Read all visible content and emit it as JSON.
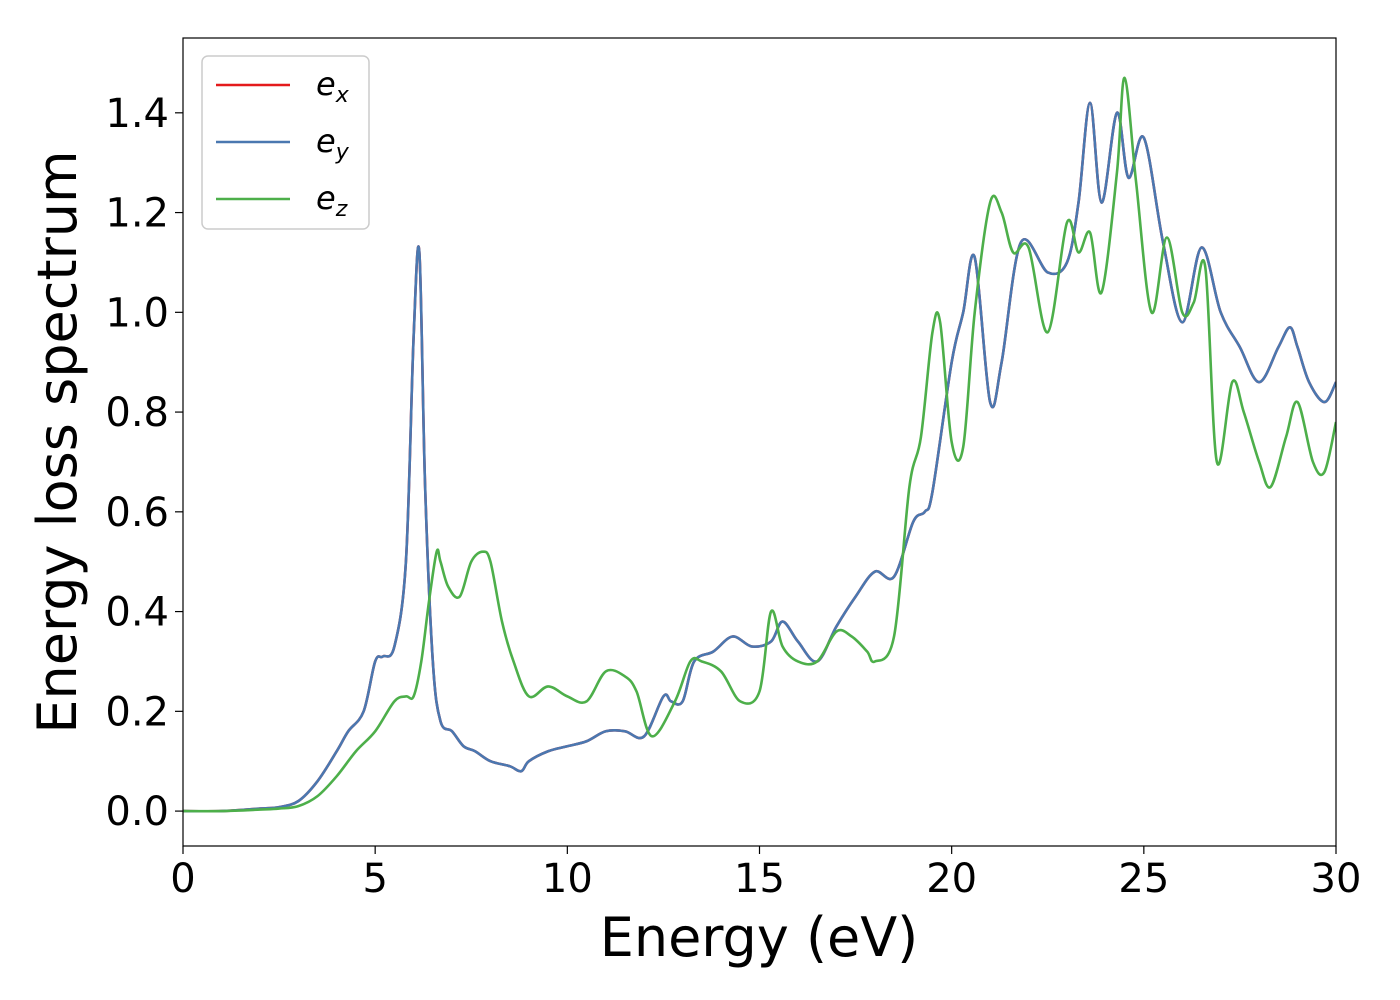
{
  "chart_data": {
    "type": "line",
    "xlabel": "Energy (eV)",
    "ylabel": "Energy loss spectrum",
    "xlim": [
      0,
      30
    ],
    "ylim": [
      -0.07,
      1.55
    ],
    "xticks": [
      0,
      5,
      10,
      15,
      20,
      25,
      30
    ],
    "xtick_labels": [
      "0",
      "5",
      "10",
      "15",
      "20",
      "25",
      "30"
    ],
    "yticks": [
      0.0,
      0.2,
      0.4,
      0.6,
      0.8,
      1.0,
      1.2,
      1.4
    ],
    "ytick_labels": [
      "0.0",
      "0.2",
      "0.4",
      "0.6",
      "0.8",
      "1.0",
      "1.2",
      "1.4"
    ],
    "grid": false,
    "legend_position": "top-left",
    "series": [
      {
        "name": "e_x",
        "label_base": "e",
        "label_sub": "x",
        "color": "#e41a1c",
        "x": [
          0,
          1,
          2,
          2.5,
          3,
          3.5,
          4,
          4.3,
          4.7,
          5,
          5.2,
          5.5,
          5.8,
          6,
          6.15,
          6.3,
          6.5,
          6.7,
          7,
          7.3,
          7.6,
          8,
          8.5,
          8.8,
          9,
          9.5,
          10,
          10.5,
          11,
          11.5,
          12,
          12.5,
          12.7,
          13,
          13.3,
          13.8,
          14.3,
          14.8,
          15.3,
          15.6,
          16,
          16.5,
          17,
          17.5,
          18,
          18.5,
          19,
          19.3,
          19.5,
          20,
          20.3,
          20.6,
          21,
          21.3,
          21.8,
          22.5,
          23,
          23.3,
          23.6,
          23.9,
          24.3,
          24.6,
          25,
          25.5,
          26,
          26.5,
          27,
          27.5,
          28,
          28.5,
          28.8,
          29,
          29.3,
          29.7,
          30
        ],
        "values": [
          0.0,
          0.0,
          0.005,
          0.008,
          0.02,
          0.06,
          0.12,
          0.16,
          0.2,
          0.3,
          0.31,
          0.33,
          0.5,
          0.95,
          1.12,
          0.65,
          0.3,
          0.18,
          0.16,
          0.13,
          0.12,
          0.1,
          0.09,
          0.08,
          0.1,
          0.12,
          0.13,
          0.14,
          0.16,
          0.16,
          0.15,
          0.23,
          0.22,
          0.22,
          0.3,
          0.32,
          0.35,
          0.33,
          0.34,
          0.38,
          0.34,
          0.3,
          0.37,
          0.43,
          0.48,
          0.47,
          0.58,
          0.6,
          0.64,
          0.9,
          1.0,
          1.11,
          0.82,
          0.9,
          1.14,
          1.08,
          1.1,
          1.22,
          1.42,
          1.22,
          1.4,
          1.27,
          1.35,
          1.14,
          0.98,
          1.13,
          1.0,
          0.93,
          0.86,
          0.93,
          0.97,
          0.93,
          0.86,
          0.82,
          0.86
        ]
      },
      {
        "name": "e_y",
        "label_base": "e",
        "label_sub": "y",
        "color": "#4a78b0",
        "x": [
          0,
          1,
          2,
          2.5,
          3,
          3.5,
          4,
          4.3,
          4.7,
          5,
          5.2,
          5.5,
          5.8,
          6,
          6.15,
          6.3,
          6.5,
          6.7,
          7,
          7.3,
          7.6,
          8,
          8.5,
          8.8,
          9,
          9.5,
          10,
          10.5,
          11,
          11.5,
          12,
          12.5,
          12.7,
          13,
          13.3,
          13.8,
          14.3,
          14.8,
          15.3,
          15.6,
          16,
          16.5,
          17,
          17.5,
          18,
          18.5,
          19,
          19.3,
          19.5,
          20,
          20.3,
          20.6,
          21,
          21.3,
          21.8,
          22.5,
          23,
          23.3,
          23.6,
          23.9,
          24.3,
          24.6,
          25,
          25.5,
          26,
          26.5,
          27,
          27.5,
          28,
          28.5,
          28.8,
          29,
          29.3,
          29.7,
          30
        ],
        "values": [
          0.0,
          0.0,
          0.005,
          0.008,
          0.02,
          0.06,
          0.12,
          0.16,
          0.2,
          0.3,
          0.31,
          0.33,
          0.5,
          0.95,
          1.12,
          0.65,
          0.3,
          0.18,
          0.16,
          0.13,
          0.12,
          0.1,
          0.09,
          0.08,
          0.1,
          0.12,
          0.13,
          0.14,
          0.16,
          0.16,
          0.15,
          0.23,
          0.22,
          0.22,
          0.3,
          0.32,
          0.35,
          0.33,
          0.34,
          0.38,
          0.34,
          0.3,
          0.37,
          0.43,
          0.48,
          0.47,
          0.58,
          0.6,
          0.64,
          0.9,
          1.0,
          1.11,
          0.82,
          0.9,
          1.14,
          1.08,
          1.1,
          1.22,
          1.42,
          1.22,
          1.4,
          1.27,
          1.35,
          1.14,
          0.98,
          1.13,
          1.0,
          0.93,
          0.86,
          0.93,
          0.97,
          0.93,
          0.86,
          0.82,
          0.86
        ]
      },
      {
        "name": "e_z",
        "label_base": "e",
        "label_sub": "z",
        "color": "#4daf4a",
        "x": [
          0,
          1,
          2,
          2.5,
          3,
          3.5,
          4,
          4.5,
          5,
          5.5,
          5.8,
          6,
          6.2,
          6.4,
          6.6,
          6.7,
          6.9,
          7.2,
          7.5,
          7.8,
          8,
          8.3,
          8.6,
          9,
          9.5,
          10,
          10.5,
          11,
          11.5,
          11.8,
          12.2,
          12.8,
          13.2,
          13.5,
          14,
          14.5,
          15,
          15.3,
          15.6,
          16,
          16.5,
          17,
          17.4,
          17.8,
          18,
          18.5,
          18.9,
          19.2,
          19.5,
          19.7,
          20,
          20.3,
          20.6,
          21,
          21.3,
          21.6,
          22,
          22.5,
          23,
          23.3,
          23.6,
          23.9,
          24.3,
          24.5,
          24.8,
          25.2,
          25.6,
          26,
          26.3,
          26.6,
          26.9,
          27.3,
          27.6,
          28,
          28.3,
          28.7,
          29,
          29.4,
          29.7,
          30
        ],
        "values": [
          0.0,
          0.0,
          0.003,
          0.005,
          0.01,
          0.03,
          0.07,
          0.12,
          0.16,
          0.22,
          0.23,
          0.23,
          0.3,
          0.42,
          0.52,
          0.5,
          0.45,
          0.43,
          0.5,
          0.52,
          0.5,
          0.38,
          0.3,
          0.23,
          0.25,
          0.23,
          0.22,
          0.28,
          0.27,
          0.24,
          0.15,
          0.22,
          0.3,
          0.3,
          0.28,
          0.22,
          0.24,
          0.4,
          0.33,
          0.3,
          0.3,
          0.36,
          0.35,
          0.32,
          0.3,
          0.35,
          0.65,
          0.75,
          0.96,
          0.98,
          0.74,
          0.73,
          1.0,
          1.22,
          1.2,
          1.12,
          1.13,
          0.96,
          1.18,
          1.12,
          1.16,
          1.04,
          1.28,
          1.47,
          1.26,
          1.0,
          1.15,
          1.0,
          1.02,
          1.09,
          0.7,
          0.86,
          0.8,
          0.7,
          0.65,
          0.75,
          0.82,
          0.7,
          0.68,
          0.78
        ]
      }
    ]
  }
}
